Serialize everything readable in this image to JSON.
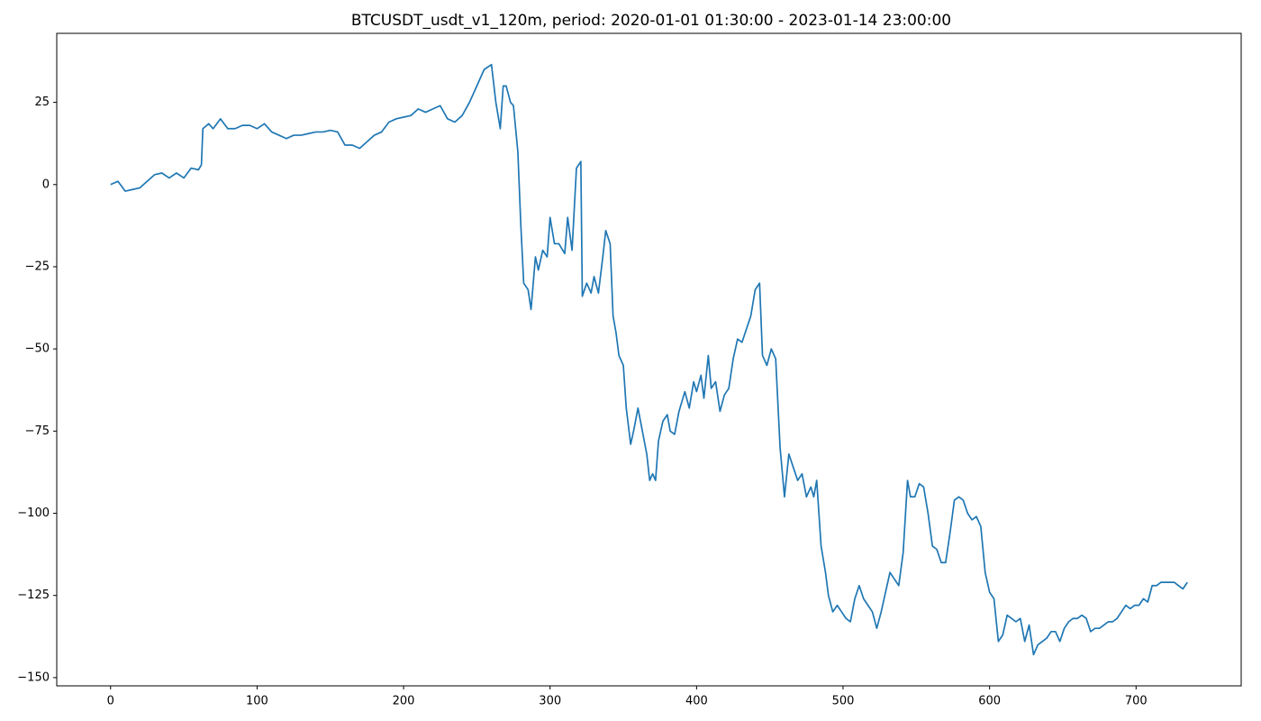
{
  "chart_data": {
    "type": "line",
    "title": "BTCUSDT_usdt_v1_120m, period: 2020-01-01 01:30:00 - 2023-01-14 23:00:00",
    "color": "#1f77b4",
    "xlim": [
      -36.75,
      771.75
    ],
    "ylim": [
      -152.5,
      46
    ],
    "xticks": [
      0,
      100,
      200,
      300,
      400,
      500,
      600,
      700
    ],
    "yticks": [
      {
        "value": -150,
        "label": "−150"
      },
      {
        "value": -125,
        "label": "−125"
      },
      {
        "value": -100,
        "label": "−100"
      },
      {
        "value": -75,
        "label": "−75"
      },
      {
        "value": -50,
        "label": "−50"
      },
      {
        "value": -25,
        "label": "−25"
      },
      0,
      25
    ],
    "x": [
      0,
      5,
      10,
      15,
      20,
      25,
      30,
      35,
      40,
      45,
      50,
      55,
      60,
      62,
      63,
      67,
      70,
      75,
      80,
      85,
      90,
      95,
      100,
      105,
      110,
      115,
      120,
      125,
      130,
      135,
      140,
      145,
      150,
      155,
      160,
      165,
      170,
      175,
      180,
      185,
      190,
      195,
      200,
      205,
      210,
      215,
      220,
      225,
      230,
      235,
      240,
      245,
      250,
      255,
      260,
      263,
      266,
      268,
      270,
      273,
      275,
      278,
      280,
      282,
      285,
      287,
      290,
      292,
      295,
      298,
      300,
      303,
      306,
      310,
      312,
      315,
      318,
      321,
      322,
      325,
      328,
      330,
      333,
      336,
      338,
      341,
      343,
      345,
      347,
      350,
      352,
      355,
      357,
      360,
      363,
      366,
      368,
      370,
      372,
      374,
      377,
      380,
      382,
      385,
      388,
      392,
      395,
      398,
      400,
      403,
      405,
      408,
      410,
      413,
      416,
      419,
      422,
      425,
      428,
      431,
      434,
      437,
      440,
      443,
      445,
      448,
      451,
      454,
      457,
      460,
      463,
      466,
      469,
      472,
      475,
      478,
      480,
      482,
      485,
      488,
      490,
      493,
      496,
      499,
      502,
      505,
      508,
      511,
      514,
      517,
      520,
      523,
      526,
      529,
      532,
      535,
      538,
      541,
      544,
      546,
      549,
      552,
      555,
      558,
      561,
      564,
      567,
      570,
      573,
      576,
      579,
      582,
      585,
      588,
      591,
      594,
      597,
      600,
      603,
      606,
      609,
      612,
      615,
      618,
      621,
      624,
      627,
      630,
      633,
      636,
      639,
      642,
      645,
      648,
      651,
      654,
      657,
      660,
      663,
      666,
      669,
      672,
      675,
      678,
      681,
      684,
      687,
      690,
      693,
      696,
      699,
      702,
      705,
      708,
      711,
      714,
      717,
      720,
      723,
      726,
      729,
      732,
      735
    ],
    "values": [
      0,
      1,
      -2,
      -1.5,
      -1,
      1,
      3,
      3.5,
      2,
      3.5,
      2,
      5,
      4.5,
      6,
      17,
      18.5,
      17,
      20,
      17,
      17,
      18,
      18,
      17,
      18.5,
      16,
      15,
      14,
      15,
      15,
      15.5,
      16,
      16,
      16.5,
      16,
      12,
      12,
      11,
      13,
      15,
      16,
      19,
      20,
      20.5,
      21,
      23,
      22,
      23,
      24,
      20,
      19,
      21,
      25,
      30,
      35,
      36.5,
      25,
      17,
      30,
      30,
      25,
      24,
      10,
      -12,
      -30,
      -32,
      -38,
      -22,
      -26,
      -20,
      -22,
      -10,
      -18,
      -18,
      -21,
      -10,
      -20,
      5,
      7,
      -34,
      -30,
      -33,
      -28,
      -33,
      -22,
      -14,
      -18,
      -40,
      -45,
      -52,
      -55,
      -68,
      -79,
      -75,
      -68,
      -75,
      -82,
      -90,
      -88,
      -90,
      -78,
      -72,
      -70,
      -75,
      -76,
      -69,
      -63,
      -68,
      -60,
      -63,
      -58,
      -65,
      -52,
      -62,
      -60,
      -69,
      -64,
      -62,
      -53,
      -47,
      -48,
      -44,
      -40,
      -32,
      -30,
      -52,
      -55,
      -50,
      -53,
      -80,
      -95,
      -82,
      -86,
      -90,
      -88,
      -95,
      -92,
      -95,
      -90,
      -110,
      -118,
      -125,
      -130,
      -128,
      -130,
      -132,
      -133,
      -126,
      -122,
      -126,
      -128,
      -130,
      -135,
      -130,
      -124,
      -118,
      -120,
      -122,
      -112,
      -90,
      -95,
      -95,
      -91,
      -92,
      -100,
      -110,
      -111,
      -115,
      -115,
      -106,
      -96,
      -95,
      -96,
      -100,
      -102,
      -101,
      -104,
      -118,
      -124,
      -126,
      -139,
      -137,
      -131,
      -132,
      -133,
      -132,
      -139,
      -134,
      -143,
      -140,
      -139,
      -138,
      -136,
      -136,
      -139,
      -135,
      -133,
      -132,
      -132,
      -131,
      -132,
      -136,
      -135,
      -135,
      -134,
      -133,
      -133,
      -132,
      -130,
      -128,
      -129,
      -128,
      -128,
      -126,
      -127,
      -122,
      -122,
      -121,
      -121,
      -121,
      -121,
      -122,
      -123,
      -121
    ]
  }
}
